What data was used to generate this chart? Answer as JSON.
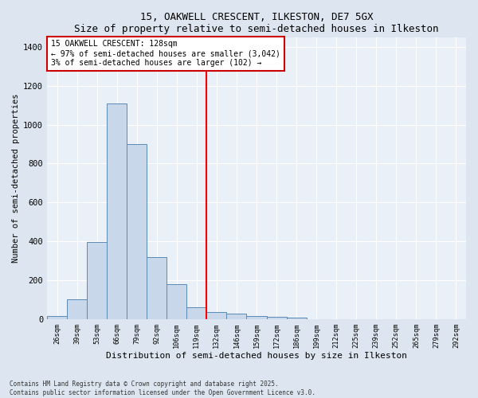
{
  "title1": "15, OAKWELL CRESCENT, ILKESTON, DE7 5GX",
  "title2": "Size of property relative to semi-detached houses in Ilkeston",
  "xlabel": "Distribution of semi-detached houses by size in Ilkeston",
  "ylabel": "Number of semi-detached properties",
  "bar_labels": [
    "26sqm",
    "39sqm",
    "53sqm",
    "66sqm",
    "79sqm",
    "92sqm",
    "106sqm",
    "119sqm",
    "132sqm",
    "146sqm",
    "159sqm",
    "172sqm",
    "186sqm",
    "199sqm",
    "212sqm",
    "225sqm",
    "239sqm",
    "252sqm",
    "265sqm",
    "279sqm",
    "292sqm"
  ],
  "bar_heights": [
    15,
    100,
    395,
    1110,
    900,
    320,
    180,
    60,
    35,
    25,
    15,
    10,
    8,
    0,
    0,
    0,
    0,
    0,
    0,
    0,
    0
  ],
  "bar_color": "#c8d8ea",
  "bar_edge_color": "#5a8ab5",
  "vline_index": 8,
  "vline_color": "red",
  "annotation_title": "15 OAKWELL CRESCENT: 128sqm",
  "annotation_line1": "← 97% of semi-detached houses are smaller (3,042)",
  "annotation_line2": "3% of semi-detached houses are larger (102) →",
  "annotation_box_color": "white",
  "annotation_edge_color": "#cc0000",
  "ylim": [
    0,
    1450
  ],
  "yticks": [
    0,
    200,
    400,
    600,
    800,
    1000,
    1200,
    1400
  ],
  "footer1": "Contains HM Land Registry data © Crown copyright and database right 2025.",
  "footer2": "Contains public sector information licensed under the Open Government Licence v3.0.",
  "bg_color": "#dde6f0",
  "plot_bg_color": "#eaf0f7"
}
